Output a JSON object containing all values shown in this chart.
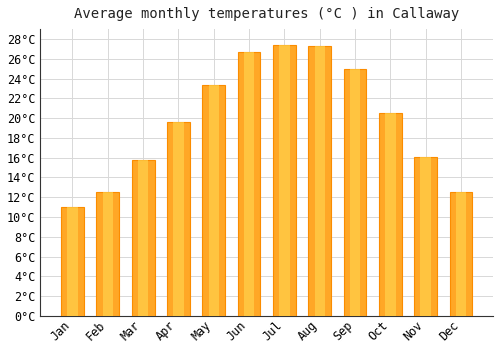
{
  "title": "Average monthly temperatures (°C ) in Callaway",
  "months": [
    "Jan",
    "Feb",
    "Mar",
    "Apr",
    "May",
    "Jun",
    "Jul",
    "Aug",
    "Sep",
    "Oct",
    "Nov",
    "Dec"
  ],
  "values": [
    11.0,
    12.5,
    15.8,
    19.6,
    23.3,
    26.7,
    27.4,
    27.3,
    25.0,
    20.5,
    16.1,
    12.5
  ],
  "bar_color_main": "#FFA726",
  "bar_color_light": "#FFD54F",
  "bar_color_dark": "#FB8C00",
  "background_color": "#FFFFFF",
  "grid_color": "#D8D8D8",
  "ylim": [
    0,
    29
  ],
  "ytick_step": 2,
  "title_fontsize": 10,
  "tick_fontsize": 8.5,
  "bar_width": 0.65
}
